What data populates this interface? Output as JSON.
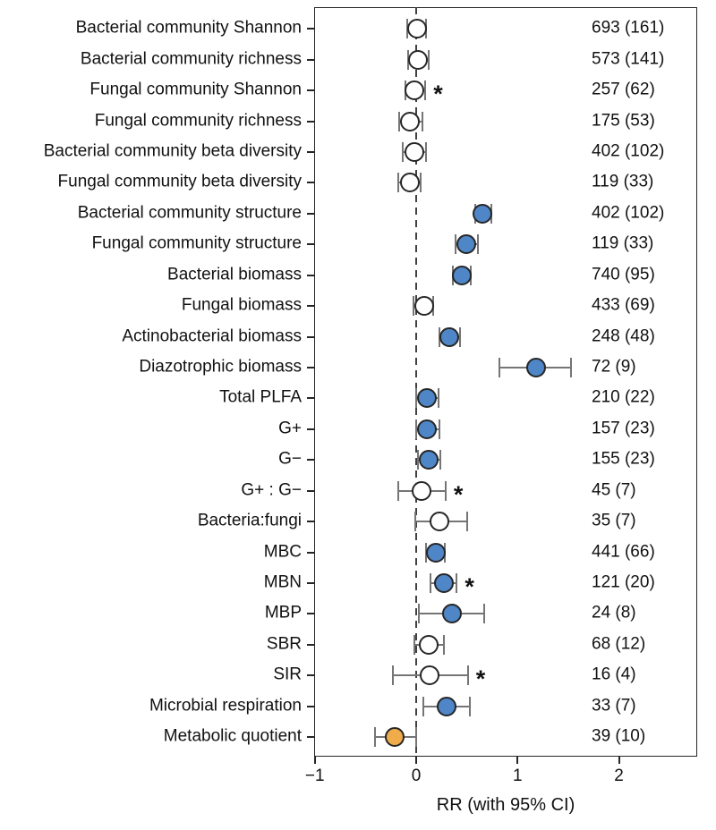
{
  "chart_data": {
    "type": "scatter",
    "subtype": "forest-plot",
    "title": "",
    "xlabel": "RR (with 95% CI)",
    "ylabel": "",
    "xlim": [
      -1.01,
      2.77
    ],
    "x_ticks": [
      {
        "value": -1,
        "label": "−1"
      },
      {
        "value": 0,
        "label": "0"
      },
      {
        "value": 1,
        "label": "1"
      },
      {
        "value": 2,
        "label": "2"
      }
    ],
    "zero_line": 0,
    "grid": false,
    "legend": "none",
    "colors": {
      "blue": "#4f86c7",
      "white": "#ffffff",
      "orange": "#f0ab4a",
      "outline": "#262626",
      "error_bar": "#757575",
      "text": "#111111"
    },
    "rows": [
      {
        "label": "Bacterial community Shannon",
        "rr": 0.01,
        "lo": -0.09,
        "hi": 0.1,
        "n": "693 (161)",
        "fill": "white",
        "sig": false
      },
      {
        "label": "Bacterial community richness",
        "rr": 0.015,
        "lo": -0.08,
        "hi": 0.12,
        "n": "573 (141)",
        "fill": "white",
        "sig": false
      },
      {
        "label": "Fungal community Shannon",
        "rr": -0.02,
        "lo": -0.11,
        "hi": 0.09,
        "n": "257 (62)",
        "fill": "white",
        "sig": true
      },
      {
        "label": "Fungal community richness",
        "rr": -0.06,
        "lo": -0.17,
        "hi": 0.06,
        "n": "175 (53)",
        "fill": "white",
        "sig": false
      },
      {
        "label": "Bacterial community beta diversity",
        "rr": -0.015,
        "lo": -0.13,
        "hi": 0.1,
        "n": "402 (102)",
        "fill": "white",
        "sig": false
      },
      {
        "label": "Fungal community beta diversity",
        "rr": -0.065,
        "lo": -0.18,
        "hi": 0.04,
        "n": "119 (33)",
        "fill": "white",
        "sig": false
      },
      {
        "label": "Bacterial community structure",
        "rr": 0.65,
        "lo": 0.58,
        "hi": 0.74,
        "n": "402 (102)",
        "fill": "blue",
        "sig": false
      },
      {
        "label": "Fungal community structure",
        "rr": 0.49,
        "lo": 0.39,
        "hi": 0.61,
        "n": "119 (33)",
        "fill": "blue",
        "sig": false
      },
      {
        "label": "Bacterial biomass",
        "rr": 0.45,
        "lo": 0.36,
        "hi": 0.54,
        "n": "740 (95)",
        "fill": "blue",
        "sig": false
      },
      {
        "label": "Fungal biomass",
        "rr": 0.08,
        "lo": -0.03,
        "hi": 0.17,
        "n": "433 (69)",
        "fill": "white",
        "sig": false
      },
      {
        "label": "Actinobacterial biomass",
        "rr": 0.33,
        "lo": 0.23,
        "hi": 0.43,
        "n": "248 (48)",
        "fill": "blue",
        "sig": false
      },
      {
        "label": "Diazotrophic biomass",
        "rr": 1.18,
        "lo": 0.82,
        "hi": 1.53,
        "n": "72 (9)",
        "fill": "blue",
        "sig": false
      },
      {
        "label": "Total PLFA",
        "rr": 0.11,
        "lo": 0.0,
        "hi": 0.22,
        "n": "210 (22)",
        "fill": "blue",
        "sig": false
      },
      {
        "label": "G+",
        "rr": 0.11,
        "lo": 0.0,
        "hi": 0.23,
        "n": "157 (23)",
        "fill": "blue",
        "sig": false
      },
      {
        "label": "G−",
        "rr": 0.125,
        "lo": 0.015,
        "hi": 0.235,
        "n": "155 (23)",
        "fill": "blue",
        "sig": false
      },
      {
        "label": "G+ : G−",
        "rr": 0.05,
        "lo": -0.18,
        "hi": 0.29,
        "n": "45 (7)",
        "fill": "white",
        "sig": true
      },
      {
        "label": "Bacteria:fungi",
        "rr": 0.23,
        "lo": -0.01,
        "hi": 0.5,
        "n": "35 (7)",
        "fill": "white",
        "sig": false
      },
      {
        "label": "MBC",
        "rr": 0.19,
        "lo": 0.1,
        "hi": 0.285,
        "n": "441 (66)",
        "fill": "blue",
        "sig": false
      },
      {
        "label": "MBN",
        "rr": 0.27,
        "lo": 0.14,
        "hi": 0.4,
        "n": "121 (20)",
        "fill": "blue",
        "sig": true
      },
      {
        "label": "MBP",
        "rr": 0.35,
        "lo": 0.03,
        "hi": 0.67,
        "n": "24 (8)",
        "fill": "blue",
        "sig": false
      },
      {
        "label": "SBR",
        "rr": 0.12,
        "lo": -0.02,
        "hi": 0.27,
        "n": "68 (12)",
        "fill": "white",
        "sig": false
      },
      {
        "label": "SIR",
        "rr": 0.13,
        "lo": -0.23,
        "hi": 0.51,
        "n": "16 (4)",
        "fill": "white",
        "sig": true
      },
      {
        "label": "Microbial respiration",
        "rr": 0.3,
        "lo": 0.07,
        "hi": 0.53,
        "n": "33 (7)",
        "fill": "blue",
        "sig": false
      },
      {
        "label": "Metabolic quotient",
        "rr": -0.215,
        "lo": -0.41,
        "hi": 0.0,
        "n": "39 (10)",
        "fill": "orange",
        "sig": false
      }
    ]
  }
}
